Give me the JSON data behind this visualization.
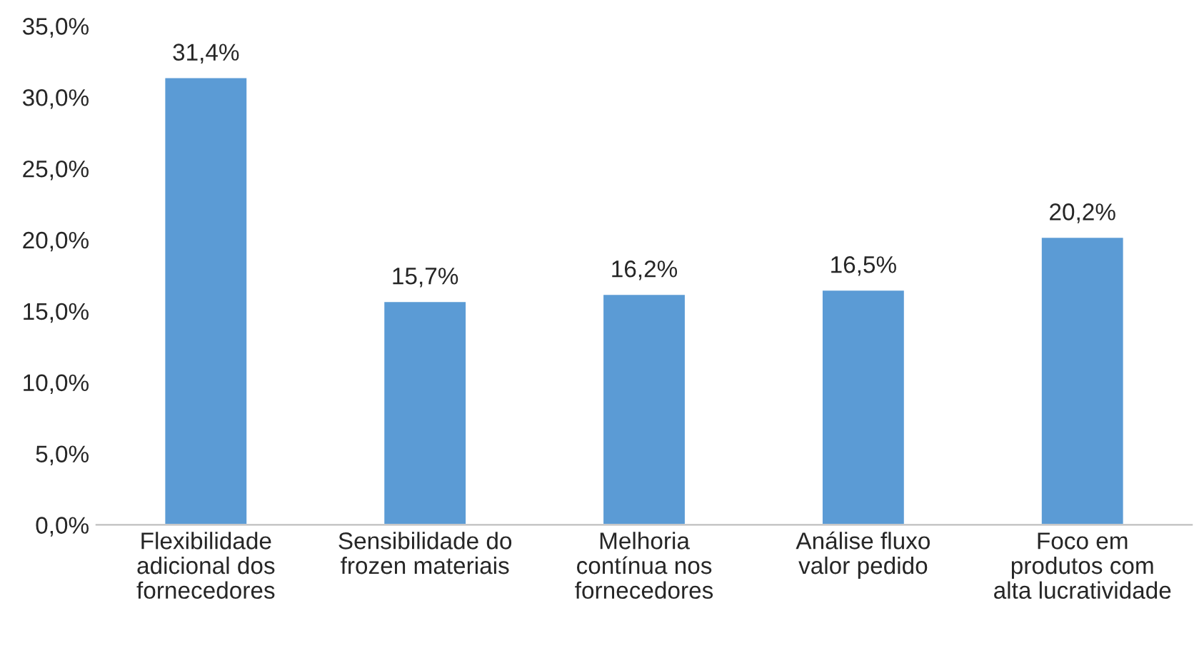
{
  "chart_data": {
    "type": "bar",
    "categories": [
      "Flexibilidade\nadicional dos\nfornecedores",
      "Sensibilidade do\nfrozen materiais",
      "Melhoria\ncontínua nos\nfornecedores",
      "Análise fluxo\nvalor pedido",
      "Foco em\nprodutos com\nalta lucratividade"
    ],
    "values": [
      31.4,
      15.7,
      16.2,
      16.5,
      20.2
    ],
    "value_labels": [
      "31,4%",
      "15,7%",
      "16,2%",
      "16,5%",
      "20,2%"
    ],
    "color": "#5b9bd5",
    "ylim": [
      0,
      35
    ],
    "yticks": [
      {
        "value": 0,
        "label": "0,0%"
      },
      {
        "value": 5,
        "label": "5,0%"
      },
      {
        "value": 10,
        "label": "10,0%"
      },
      {
        "value": 15,
        "label": "15,0%"
      },
      {
        "value": 20,
        "label": "20,0%"
      },
      {
        "value": 25,
        "label": "25,0%"
      },
      {
        "value": 30,
        "label": "30,0%"
      },
      {
        "value": 35,
        "label": "35,0%"
      }
    ],
    "grid": false,
    "legend": false
  }
}
